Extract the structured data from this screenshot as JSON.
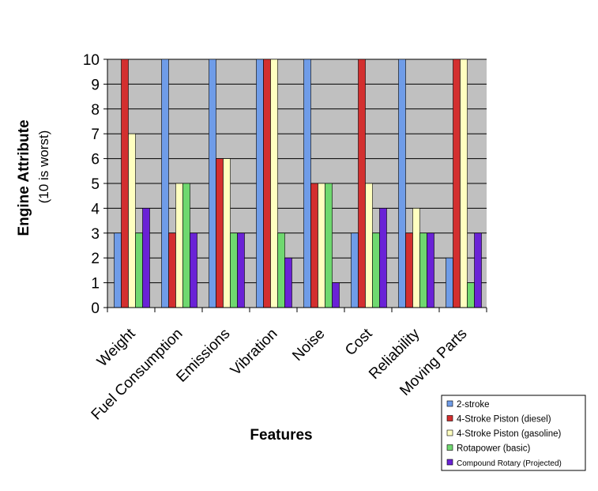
{
  "chart_data": {
    "type": "bar",
    "title": "",
    "xlabel": "Features",
    "ylabel": "Engine Attribute",
    "ylabel_sub": "(10 is worst)",
    "ylim": [
      0,
      10
    ],
    "yticks": [
      "0",
      "1",
      "2",
      "3",
      "4",
      "5",
      "6",
      "7",
      "8",
      "9",
      "10"
    ],
    "grid": true,
    "plot_background": "#c0c0c0",
    "legend_position": "bottom-right",
    "categories": [
      "Weight",
      "Fuel Consumption",
      "Emissions",
      "Vibration",
      "Noise",
      "Cost",
      "Reliability",
      "Moving Parts"
    ],
    "series": [
      {
        "name": "2-stroke",
        "color": "#6f9ce8",
        "values": [
          3,
          10,
          10,
          10,
          10,
          3,
          10,
          2
        ]
      },
      {
        "name": "4-Stroke Piston (diesel)",
        "color": "#d32f2f",
        "values": [
          10,
          3,
          6,
          10,
          5,
          10,
          3,
          10
        ]
      },
      {
        "name": "4-Stroke Piston (gasoline)",
        "color": "#ffffc0",
        "values": [
          7,
          5,
          6,
          10,
          5,
          5,
          4,
          10
        ]
      },
      {
        "name": "Rotapower (basic)",
        "color": "#6fd86f",
        "values": [
          3,
          5,
          3,
          3,
          5,
          3,
          3,
          1
        ]
      },
      {
        "name": "Compound Rotary (Projected)",
        "color": "#6a22d6",
        "values": [
          4,
          3,
          3,
          2,
          1,
          4,
          3,
          3
        ]
      }
    ]
  }
}
